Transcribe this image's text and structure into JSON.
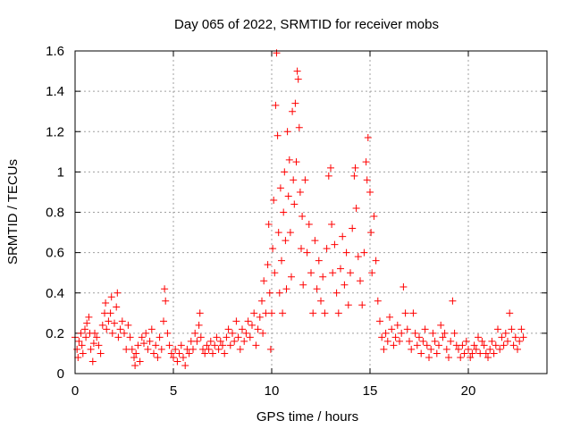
{
  "chart_data": {
    "type": "scatter",
    "title": "Day 065 of 2022, SRMTID for receiver mobs",
    "xlabel": "GPS time / hours",
    "ylabel": "SRMTID / TECUs",
    "xlim": [
      0,
      24
    ],
    "ylim": [
      0,
      1.6
    ],
    "xticks": [
      0,
      5,
      10,
      15,
      20
    ],
    "xtick_labels": [
      "0",
      "5",
      "10",
      "15",
      "20"
    ],
    "yticks": [
      0,
      0.2,
      0.4,
      0.6,
      0.8,
      1,
      1.2,
      1.4,
      1.6
    ],
    "ytick_labels": [
      "0",
      "0.2",
      "0.4",
      "0.6",
      "0.8",
      "1",
      "1.2",
      "1.4",
      "1.6"
    ],
    "grid": true,
    "marker": "+",
    "series": [
      {
        "name": "SRMTID",
        "color": "#ff0000",
        "points": [
          [
            0.0,
            0.18
          ],
          [
            0.1,
            0.12
          ],
          [
            0.15,
            0.08
          ],
          [
            0.2,
            0.16
          ],
          [
            0.3,
            0.2
          ],
          [
            0.35,
            0.14
          ],
          [
            0.4,
            0.1
          ],
          [
            0.5,
            0.22
          ],
          [
            0.55,
            0.18
          ],
          [
            0.6,
            0.25
          ],
          [
            0.7,
            0.28
          ],
          [
            0.75,
            0.2
          ],
          [
            0.8,
            0.12
          ],
          [
            0.9,
            0.06
          ],
          [
            0.95,
            0.15
          ],
          [
            1.0,
            0.2
          ],
          [
            1.1,
            0.18
          ],
          [
            1.2,
            0.14
          ],
          [
            1.3,
            0.1
          ],
          [
            1.4,
            0.24
          ],
          [
            1.5,
            0.3
          ],
          [
            1.55,
            0.35
          ],
          [
            1.6,
            0.22
          ],
          [
            1.7,
            0.26
          ],
          [
            1.8,
            0.3
          ],
          [
            1.85,
            0.38
          ],
          [
            1.9,
            0.2
          ],
          [
            2.0,
            0.25
          ],
          [
            2.1,
            0.33
          ],
          [
            2.15,
            0.4
          ],
          [
            2.2,
            0.18
          ],
          [
            2.3,
            0.22
          ],
          [
            2.4,
            0.26
          ],
          [
            2.5,
            0.2
          ],
          [
            2.6,
            0.12
          ],
          [
            2.7,
            0.24
          ],
          [
            2.8,
            0.18
          ],
          [
            2.9,
            0.12
          ],
          [
            3.0,
            0.08
          ],
          [
            3.05,
            0.04
          ],
          [
            3.1,
            0.1
          ],
          [
            3.2,
            0.14
          ],
          [
            3.3,
            0.06
          ],
          [
            3.4,
            0.18
          ],
          [
            3.5,
            0.15
          ],
          [
            3.6,
            0.2
          ],
          [
            3.7,
            0.12
          ],
          [
            3.8,
            0.16
          ],
          [
            3.9,
            0.22
          ],
          [
            4.0,
            0.1
          ],
          [
            4.1,
            0.14
          ],
          [
            4.2,
            0.08
          ],
          [
            4.3,
            0.18
          ],
          [
            4.4,
            0.12
          ],
          [
            4.5,
            0.26
          ],
          [
            4.55,
            0.42
          ],
          [
            4.6,
            0.36
          ],
          [
            4.7,
            0.2
          ],
          [
            4.8,
            0.14
          ],
          [
            4.9,
            0.1
          ],
          [
            5.0,
            0.08
          ],
          [
            5.1,
            0.12
          ],
          [
            5.2,
            0.06
          ],
          [
            5.3,
            0.1
          ],
          [
            5.4,
            0.14
          ],
          [
            5.5,
            0.08
          ],
          [
            5.6,
            0.04
          ],
          [
            5.7,
            0.12
          ],
          [
            5.8,
            0.1
          ],
          [
            5.9,
            0.16
          ],
          [
            6.0,
            0.12
          ],
          [
            6.1,
            0.2
          ],
          [
            6.2,
            0.16
          ],
          [
            6.3,
            0.24
          ],
          [
            6.35,
            0.3
          ],
          [
            6.4,
            0.18
          ],
          [
            6.5,
            0.12
          ],
          [
            6.6,
            0.1
          ],
          [
            6.7,
            0.14
          ],
          [
            6.8,
            0.12
          ],
          [
            6.9,
            0.16
          ],
          [
            7.0,
            0.1
          ],
          [
            7.1,
            0.14
          ],
          [
            7.2,
            0.18
          ],
          [
            7.3,
            0.12
          ],
          [
            7.4,
            0.16
          ],
          [
            7.5,
            0.14
          ],
          [
            7.6,
            0.1
          ],
          [
            7.7,
            0.18
          ],
          [
            7.8,
            0.22
          ],
          [
            7.9,
            0.14
          ],
          [
            8.0,
            0.2
          ],
          [
            8.1,
            0.16
          ],
          [
            8.2,
            0.26
          ],
          [
            8.3,
            0.18
          ],
          [
            8.4,
            0.12
          ],
          [
            8.5,
            0.22
          ],
          [
            8.6,
            0.16
          ],
          [
            8.7,
            0.2
          ],
          [
            8.8,
            0.26
          ],
          [
            8.9,
            0.18
          ],
          [
            9.0,
            0.24
          ],
          [
            9.1,
            0.3
          ],
          [
            9.2,
            0.14
          ],
          [
            9.3,
            0.22
          ],
          [
            9.4,
            0.28
          ],
          [
            9.5,
            0.36
          ],
          [
            9.55,
            0.2
          ],
          [
            9.6,
            0.46
          ],
          [
            9.7,
            0.3
          ],
          [
            9.8,
            0.54
          ],
          [
            9.85,
            0.74
          ],
          [
            9.9,
            0.4
          ],
          [
            9.95,
            0.12
          ],
          [
            10.0,
            0.3
          ],
          [
            10.05,
            0.62
          ],
          [
            10.1,
            0.86
          ],
          [
            10.15,
            0.5
          ],
          [
            10.2,
            1.33
          ],
          [
            10.25,
            1.59
          ],
          [
            10.3,
            1.18
          ],
          [
            10.35,
            0.7
          ],
          [
            10.4,
            0.4
          ],
          [
            10.45,
            0.92
          ],
          [
            10.5,
            0.56
          ],
          [
            10.55,
            0.3
          ],
          [
            10.6,
            0.8
          ],
          [
            10.65,
            1.0
          ],
          [
            10.7,
            0.66
          ],
          [
            10.75,
            0.42
          ],
          [
            10.8,
            1.2
          ],
          [
            10.85,
            0.88
          ],
          [
            10.9,
            1.06
          ],
          [
            10.95,
            0.7
          ],
          [
            11.0,
            0.48
          ],
          [
            11.05,
            1.3
          ],
          [
            11.1,
            0.96
          ],
          [
            11.15,
            0.84
          ],
          [
            11.2,
            1.34
          ],
          [
            11.25,
            1.05
          ],
          [
            11.3,
            1.5
          ],
          [
            11.35,
            1.46
          ],
          [
            11.4,
            1.22
          ],
          [
            11.45,
            0.9
          ],
          [
            11.5,
            0.62
          ],
          [
            11.55,
            0.78
          ],
          [
            11.6,
            0.44
          ],
          [
            11.7,
            0.96
          ],
          [
            11.8,
            0.6
          ],
          [
            11.9,
            0.74
          ],
          [
            12.0,
            0.5
          ],
          [
            12.1,
            0.3
          ],
          [
            12.2,
            0.66
          ],
          [
            12.3,
            0.42
          ],
          [
            12.4,
            0.56
          ],
          [
            12.5,
            0.36
          ],
          [
            12.6,
            0.48
          ],
          [
            12.7,
            0.3
          ],
          [
            12.8,
            0.62
          ],
          [
            12.9,
            0.98
          ],
          [
            13.0,
            1.02
          ],
          [
            13.05,
            0.74
          ],
          [
            13.1,
            0.5
          ],
          [
            13.2,
            0.64
          ],
          [
            13.3,
            0.4
          ],
          [
            13.4,
            0.3
          ],
          [
            13.5,
            0.52
          ],
          [
            13.6,
            0.68
          ],
          [
            13.7,
            0.44
          ],
          [
            13.8,
            0.6
          ],
          [
            13.9,
            0.34
          ],
          [
            14.0,
            0.5
          ],
          [
            14.1,
            0.72
          ],
          [
            14.2,
            0.98
          ],
          [
            14.25,
            1.02
          ],
          [
            14.3,
            0.82
          ],
          [
            14.4,
            0.58
          ],
          [
            14.5,
            0.46
          ],
          [
            14.6,
            0.34
          ],
          [
            14.7,
            0.6
          ],
          [
            14.8,
            1.05
          ],
          [
            14.85,
            0.96
          ],
          [
            14.9,
            1.17
          ],
          [
            15.0,
            0.9
          ],
          [
            15.05,
            0.7
          ],
          [
            15.1,
            0.5
          ],
          [
            15.2,
            0.78
          ],
          [
            15.3,
            0.56
          ],
          [
            15.4,
            0.36
          ],
          [
            15.5,
            0.26
          ],
          [
            15.6,
            0.18
          ],
          [
            15.7,
            0.12
          ],
          [
            15.8,
            0.2
          ],
          [
            15.9,
            0.16
          ],
          [
            16.0,
            0.28
          ],
          [
            16.1,
            0.22
          ],
          [
            16.2,
            0.14
          ],
          [
            16.3,
            0.18
          ],
          [
            16.4,
            0.24
          ],
          [
            16.5,
            0.16
          ],
          [
            16.6,
            0.2
          ],
          [
            16.7,
            0.43
          ],
          [
            16.8,
            0.3
          ],
          [
            16.9,
            0.22
          ],
          [
            17.0,
            0.16
          ],
          [
            17.1,
            0.12
          ],
          [
            17.2,
            0.3
          ],
          [
            17.3,
            0.2
          ],
          [
            17.4,
            0.14
          ],
          [
            17.5,
            0.18
          ],
          [
            17.6,
            0.1
          ],
          [
            17.7,
            0.16
          ],
          [
            17.8,
            0.22
          ],
          [
            17.9,
            0.14
          ],
          [
            18.0,
            0.08
          ],
          [
            18.1,
            0.12
          ],
          [
            18.2,
            0.2
          ],
          [
            18.3,
            0.16
          ],
          [
            18.4,
            0.1
          ],
          [
            18.5,
            0.14
          ],
          [
            18.6,
            0.24
          ],
          [
            18.7,
            0.18
          ],
          [
            18.8,
            0.2
          ],
          [
            18.9,
            0.12
          ],
          [
            19.0,
            0.08
          ],
          [
            19.1,
            0.16
          ],
          [
            19.2,
            0.36
          ],
          [
            19.3,
            0.2
          ],
          [
            19.4,
            0.14
          ],
          [
            19.5,
            0.12
          ],
          [
            19.6,
            0.08
          ],
          [
            19.7,
            0.14
          ],
          [
            19.8,
            0.1
          ],
          [
            19.9,
            0.16
          ],
          [
            20.0,
            0.12
          ],
          [
            20.1,
            0.08
          ],
          [
            20.2,
            0.1
          ],
          [
            20.3,
            0.14
          ],
          [
            20.4,
            0.12
          ],
          [
            20.5,
            0.18
          ],
          [
            20.6,
            0.1
          ],
          [
            20.7,
            0.16
          ],
          [
            20.8,
            0.14
          ],
          [
            20.9,
            0.1
          ],
          [
            21.0,
            0.08
          ],
          [
            21.1,
            0.12
          ],
          [
            21.2,
            0.16
          ],
          [
            21.3,
            0.1
          ],
          [
            21.4,
            0.14
          ],
          [
            21.5,
            0.22
          ],
          [
            21.6,
            0.12
          ],
          [
            21.7,
            0.18
          ],
          [
            21.8,
            0.14
          ],
          [
            21.9,
            0.2
          ],
          [
            22.0,
            0.16
          ],
          [
            22.1,
            0.3
          ],
          [
            22.2,
            0.22
          ],
          [
            22.3,
            0.14
          ],
          [
            22.4,
            0.18
          ],
          [
            22.5,
            0.12
          ],
          [
            22.6,
            0.16
          ],
          [
            22.7,
            0.22
          ],
          [
            22.8,
            0.18
          ]
        ]
      }
    ]
  }
}
